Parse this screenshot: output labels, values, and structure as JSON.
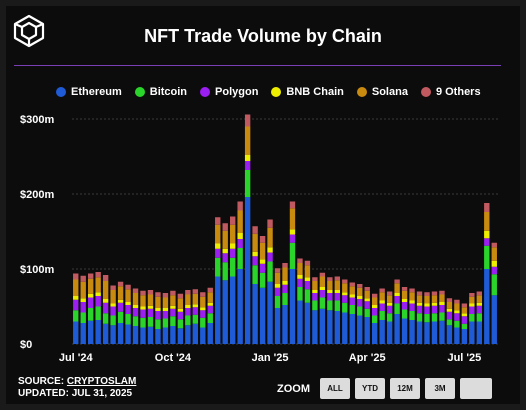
{
  "header": {
    "title": "NFT Trade Volume by Chain",
    "logo_icon": "cube-logo-icon"
  },
  "footer": {
    "source_prefix": "SOURCE: ",
    "source_name": "CRYPTOSLAM",
    "updated": "UPDATED: JUL 31, 2025"
  },
  "zoom": {
    "label": "ZOOM",
    "buttons": [
      "ALL",
      "YTD",
      "12M",
      "3M",
      ""
    ]
  },
  "chart_data": {
    "type": "bar",
    "stacked": true,
    "title": "NFT Trade Volume by Chain",
    "xlabel": "",
    "ylabel": "",
    "ylim": [
      0,
      300
    ],
    "y_unit": "$ millions",
    "yticks": [
      "$0",
      "$100m",
      "$200m",
      "$300m"
    ],
    "xticks": [
      {
        "label": "Jul '24",
        "index": 0
      },
      {
        "label": "Oct '24",
        "index": 13
      },
      {
        "label": "Jan '25",
        "index": 26
      },
      {
        "label": "Apr '25",
        "index": 39
      },
      {
        "label": "Jul '25",
        "index": 52
      }
    ],
    "x": [
      "2024-06-30",
      "2024-07-07",
      "2024-07-14",
      "2024-07-21",
      "2024-07-28",
      "2024-08-04",
      "2024-08-11",
      "2024-08-18",
      "2024-08-25",
      "2024-09-01",
      "2024-09-08",
      "2024-09-15",
      "2024-09-22",
      "2024-09-29",
      "2024-10-06",
      "2024-10-13",
      "2024-10-20",
      "2024-10-27",
      "2024-11-03",
      "2024-11-10",
      "2024-11-17",
      "2024-11-24",
      "2024-12-01",
      "2024-12-08",
      "2024-12-15",
      "2024-12-22",
      "2024-12-29",
      "2025-01-05",
      "2025-01-12",
      "2025-01-19",
      "2025-01-26",
      "2025-02-02",
      "2025-02-09",
      "2025-02-16",
      "2025-02-23",
      "2025-03-02",
      "2025-03-09",
      "2025-03-16",
      "2025-03-23",
      "2025-03-30",
      "2025-04-06",
      "2025-04-13",
      "2025-04-20",
      "2025-04-27",
      "2025-05-04",
      "2025-05-11",
      "2025-05-18",
      "2025-05-25",
      "2025-06-01",
      "2025-06-08",
      "2025-06-15",
      "2025-06-22",
      "2025-06-29",
      "2025-07-06",
      "2025-07-13",
      "2025-07-20",
      "2025-07-27"
    ],
    "series": [
      {
        "name": "Ethereum",
        "color": "#1f5bd6",
        "values": [
          30,
          28,
          31,
          32,
          27,
          25,
          28,
          26,
          24,
          22,
          23,
          20,
          22,
          24,
          21,
          25,
          27,
          22,
          28,
          90,
          85,
          90,
          100,
          196,
          80,
          75,
          83,
          48,
          52,
          100,
          58,
          55,
          45,
          47,
          45,
          44,
          42,
          40,
          38,
          36,
          28,
          32,
          30,
          40,
          34,
          32,
          30,
          29,
          30,
          31,
          25,
          22,
          20,
          30,
          30,
          100,
          65
        ]
      },
      {
        "name": "Bitcoin",
        "color": "#2bd42b",
        "values": [
          15,
          14,
          17,
          18,
          14,
          13,
          15,
          14,
          13,
          13,
          13,
          13,
          12,
          13,
          12,
          13,
          12,
          13,
          13,
          25,
          24,
          25,
          28,
          36,
          25,
          20,
          27,
          16,
          16,
          35,
          18,
          18,
          13,
          15,
          13,
          14,
          13,
          12,
          12,
          11,
          10,
          12,
          11,
          14,
          12,
          12,
          11,
          11,
          11,
          11,
          8,
          9,
          7,
          10,
          11,
          31,
          28
        ]
      },
      {
        "name": "Polygon",
        "color": "#9b1ff0",
        "values": [
          14,
          14,
          14,
          14,
          14,
          12,
          12,
          12,
          11,
          11,
          11,
          11,
          10,
          10,
          10,
          10,
          10,
          10,
          10,
          12,
          12,
          12,
          12,
          12,
          12,
          12,
          12,
          11,
          11,
          11,
          11,
          11,
          10,
          10,
          10,
          10,
          10,
          10,
          10,
          10,
          10,
          10,
          10,
          10,
          10,
          10,
          10,
          10,
          10,
          10,
          10,
          10,
          10,
          10,
          10,
          10,
          10
        ]
      },
      {
        "name": "BNB Chain",
        "color": "#eeee00",
        "values": [
          5,
          5,
          5,
          5,
          5,
          4,
          4,
          4,
          4,
          4,
          4,
          4,
          4,
          4,
          4,
          4,
          4,
          4,
          4,
          7,
          6,
          7,
          8,
          8,
          6,
          6,
          7,
          5,
          5,
          7,
          5,
          5,
          4,
          4,
          4,
          4,
          4,
          4,
          4,
          4,
          4,
          4,
          4,
          4,
          4,
          4,
          4,
          4,
          4,
          4,
          4,
          4,
          4,
          4,
          4,
          10,
          8
        ]
      },
      {
        "name": "Solana",
        "color": "#c98a10",
        "values": [
          22,
          22,
          20,
          20,
          24,
          18,
          18,
          17,
          16,
          15,
          15,
          15,
          14,
          14,
          14,
          14,
          14,
          14,
          14,
          25,
          24,
          25,
          30,
          38,
          24,
          22,
          26,
          15,
          18,
          28,
          16,
          16,
          12,
          14,
          12,
          13,
          12,
          11,
          11,
          10,
          10,
          11,
          10,
          13,
          11,
          11,
          10,
          10,
          10,
          10,
          9,
          9,
          8,
          9,
          10,
          25,
          18
        ]
      },
      {
        "name": "9 Others",
        "color": "#c05a60",
        "values": [
          8,
          8,
          7,
          7,
          8,
          6,
          6,
          6,
          6,
          6,
          6,
          6,
          6,
          6,
          6,
          6,
          6,
          6,
          6,
          10,
          10,
          11,
          12,
          16,
          10,
          9,
          11,
          6,
          6,
          9,
          6,
          6,
          5,
          5,
          5,
          5,
          5,
          5,
          5,
          5,
          5,
          5,
          5,
          5,
          5,
          5,
          5,
          5,
          5,
          5,
          5,
          5,
          5,
          5,
          5,
          12,
          6
        ]
      }
    ]
  }
}
